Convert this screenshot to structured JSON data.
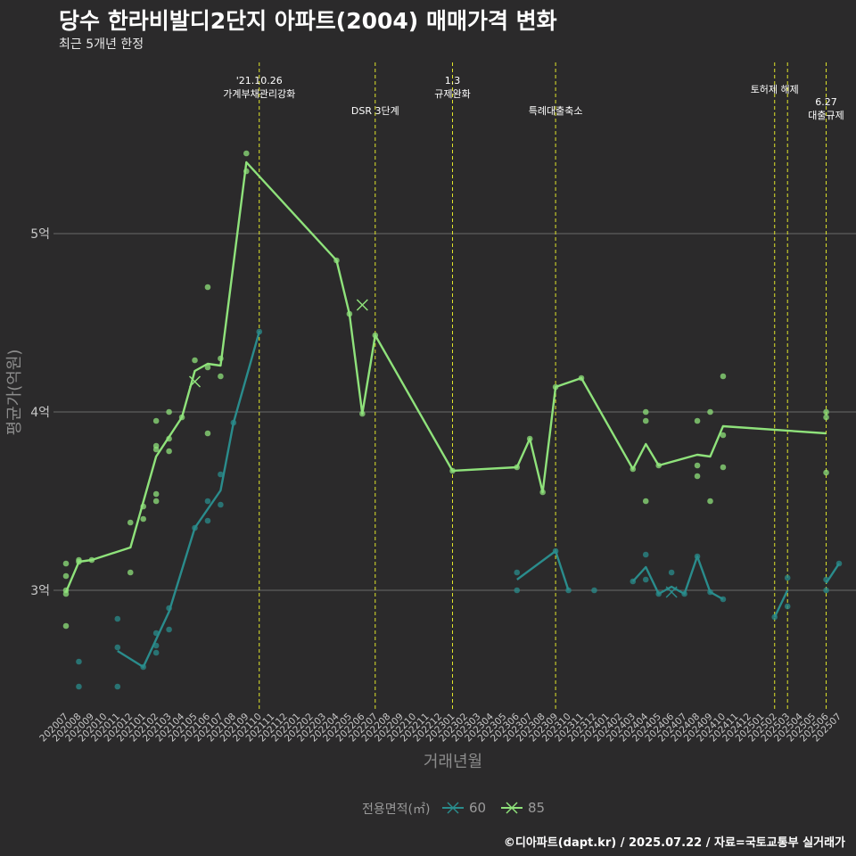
{
  "header": {
    "title": "당수 한라비발디2단지 아파트(2004) 매매가격 변화",
    "subtitle": "최근 5개년 한정",
    "caption": "©디아파트(dapt.kr) / 2025.07.22 / 자료=국토교통부 실거래가"
  },
  "colors": {
    "background": "#2b2a2b",
    "grid": "#6a6a6a",
    "series_60": "#2a8c8c",
    "series_85": "#8fe27b",
    "event_line": "#e1e62a",
    "axis_text": "#c8c8c8",
    "axis_title": "#8c8c8c"
  },
  "legend": {
    "title": "전용면적(㎡)",
    "items": [
      "60",
      "85"
    ]
  },
  "chart_data": {
    "type": "line",
    "title": "당수 한라비발디2단지 아파트(2004) 매매가격 변화",
    "subtitle": "최근 5개년 한정",
    "xlabel": "거래년월",
    "ylabel": "평균가(억원)",
    "ylim": [
      2.33,
      5.98
    ],
    "yticks": [
      3,
      4,
      5
    ],
    "ytick_labels": [
      "3억",
      "4억",
      "5억"
    ],
    "grid": true,
    "legend_position": "bottom",
    "categories": [
      "202007",
      "202008",
      "202009",
      "202010",
      "202011",
      "202012",
      "202101",
      "202102",
      "202103",
      "202104",
      "202105",
      "202106",
      "202107",
      "202108",
      "202109",
      "202110",
      "202111",
      "202112",
      "202201",
      "202202",
      "202203",
      "202204",
      "202205",
      "202206",
      "202207",
      "202208",
      "202209",
      "202210",
      "202211",
      "202212",
      "202301",
      "202302",
      "202303",
      "202304",
      "202305",
      "202306",
      "202307",
      "202308",
      "202309",
      "202310",
      "202311",
      "202312",
      "202401",
      "202402",
      "202403",
      "202404",
      "202405",
      "202406",
      "202407",
      "202408",
      "202409",
      "202410",
      "202411",
      "202412",
      "202501",
      "202502",
      "202503",
      "202504",
      "202505",
      "202506",
      "202507"
    ],
    "events": [
      {
        "x": "202110",
        "label": "'21.10.26\n가계부채관리강화",
        "level": 1
      },
      {
        "x": "202207",
        "label": "DSR 3단계",
        "level": 2
      },
      {
        "x": "202301",
        "label": "1.3\n규제완화",
        "level": 1
      },
      {
        "x": "202309",
        "label": "특례대출축소",
        "level": 2
      },
      {
        "x": "202502",
        "label": "토허제 해제",
        "level": 1
      },
      {
        "x": "202503",
        "label": "",
        "level": 1
      },
      {
        "x": "202506",
        "label": "6.27\n대출규제",
        "level": 3
      }
    ],
    "series": [
      {
        "name": "60",
        "line": [
          [
            "202011",
            2.66
          ],
          [
            "202101",
            2.57
          ],
          [
            "202103",
            2.88
          ],
          [
            "202105",
            3.35
          ],
          [
            "202107",
            3.56
          ],
          [
            "202108",
            3.94
          ],
          [
            "202110",
            4.45
          ],
          null,
          [
            "202306",
            3.06
          ],
          [
            "202309",
            3.22
          ],
          [
            "202310",
            3.0
          ],
          null,
          [
            "202403",
            3.05
          ],
          [
            "202404",
            3.13
          ],
          [
            "202405",
            2.98
          ],
          [
            "202406",
            3.02
          ],
          [
            "202407",
            2.98
          ],
          [
            "202408",
            3.19
          ],
          [
            "202409",
            2.99
          ],
          [
            "202410",
            2.95
          ],
          null,
          [
            "202502",
            2.85
          ],
          [
            "202503",
            3.0
          ],
          null,
          [
            "202506",
            3.04
          ],
          [
            "202507",
            3.15
          ]
        ],
        "points": [
          [
            "202008",
            2.46
          ],
          [
            "202008",
            2.6
          ],
          [
            "202011",
            2.46
          ],
          [
            "202011",
            2.68
          ],
          [
            "202011",
            2.84
          ],
          [
            "202101",
            2.57
          ],
          [
            "202102",
            2.65
          ],
          [
            "202102",
            2.69
          ],
          [
            "202102",
            2.76
          ],
          [
            "202103",
            2.78
          ],
          [
            "202103",
            2.9
          ],
          [
            "202105",
            3.35
          ],
          [
            "202106",
            3.39
          ],
          [
            "202106",
            3.5
          ],
          [
            "202107",
            3.48
          ],
          [
            "202107",
            3.65
          ],
          [
            "202108",
            3.94
          ],
          [
            "202110",
            4.45
          ],
          [
            "202306",
            3.0
          ],
          [
            "202306",
            3.1
          ],
          [
            "202309",
            3.22
          ],
          [
            "202310",
            3.0
          ],
          [
            "202312",
            3.0
          ],
          [
            "202403",
            3.05
          ],
          [
            "202404",
            3.06
          ],
          [
            "202404",
            3.2
          ],
          [
            "202405",
            2.98
          ],
          [
            "202406",
            3.1
          ],
          [
            "202407",
            2.98
          ],
          [
            "202408",
            3.19
          ],
          [
            "202409",
            2.99
          ],
          [
            "202410",
            2.95
          ],
          [
            "202502",
            2.85
          ],
          [
            "202503",
            2.91
          ],
          [
            "202503",
            3.07
          ],
          [
            "202506",
            3.0
          ],
          [
            "202506",
            3.06
          ],
          [
            "202507",
            3.15
          ]
        ],
        "cross": [
          [
            "202406",
            2.99
          ]
        ]
      },
      {
        "name": "85",
        "line": [
          [
            "202007",
            2.99
          ],
          [
            "202008",
            3.16
          ],
          [
            "202009",
            3.17
          ],
          [
            "202012",
            3.24
          ],
          [
            "202102",
            3.75
          ],
          [
            "202104",
            3.97
          ],
          [
            "202105",
            4.23
          ],
          [
            "202106",
            4.27
          ],
          [
            "202107",
            4.26
          ],
          [
            "202109",
            5.4
          ],
          [
            "202204",
            4.85
          ],
          [
            "202205",
            4.55
          ],
          [
            "202206",
            3.99
          ],
          [
            "202207",
            4.43
          ],
          [
            "202301",
            3.67
          ],
          [
            "202306",
            3.69
          ],
          [
            "202307",
            3.85
          ],
          [
            "202308",
            3.55
          ],
          [
            "202309",
            4.14
          ],
          [
            "202311",
            4.19
          ],
          [
            "202403",
            3.68
          ],
          [
            "202404",
            3.82
          ],
          [
            "202405",
            3.7
          ],
          [
            "202408",
            3.76
          ],
          [
            "202409",
            3.75
          ],
          [
            "202410",
            3.92
          ],
          [
            "202506",
            3.88
          ]
        ],
        "points": [
          [
            "202007",
            2.8
          ],
          [
            "202007",
            2.98
          ],
          [
            "202007",
            3.0
          ],
          [
            "202007",
            3.08
          ],
          [
            "202007",
            3.15
          ],
          [
            "202008",
            3.16
          ],
          [
            "202008",
            3.17
          ],
          [
            "202009",
            3.17
          ],
          [
            "202012",
            3.1
          ],
          [
            "202012",
            3.38
          ],
          [
            "202101",
            3.4
          ],
          [
            "202101",
            3.47
          ],
          [
            "202102",
            3.5
          ],
          [
            "202102",
            3.54
          ],
          [
            "202102",
            3.79
          ],
          [
            "202102",
            3.81
          ],
          [
            "202102",
            3.95
          ],
          [
            "202103",
            3.78
          ],
          [
            "202103",
            3.85
          ],
          [
            "202103",
            4.0
          ],
          [
            "202104",
            3.97
          ],
          [
            "202105",
            4.29
          ],
          [
            "202106",
            3.88
          ],
          [
            "202106",
            4.25
          ],
          [
            "202106",
            4.7
          ],
          [
            "202107",
            4.2
          ],
          [
            "202107",
            4.3
          ],
          [
            "202109",
            5.35
          ],
          [
            "202109",
            5.45
          ],
          [
            "202204",
            4.85
          ],
          [
            "202205",
            4.55
          ],
          [
            "202206",
            3.99
          ],
          [
            "202207",
            4.43
          ],
          [
            "202301",
            3.67
          ],
          [
            "202306",
            3.69
          ],
          [
            "202307",
            3.85
          ],
          [
            "202308",
            3.55
          ],
          [
            "202309",
            4.14
          ],
          [
            "202311",
            4.19
          ],
          [
            "202403",
            3.68
          ],
          [
            "202404",
            3.5
          ],
          [
            "202404",
            3.95
          ],
          [
            "202404",
            4.0
          ],
          [
            "202405",
            3.7
          ],
          [
            "202408",
            3.64
          ],
          [
            "202408",
            3.7
          ],
          [
            "202408",
            3.95
          ],
          [
            "202409",
            3.5
          ],
          [
            "202409",
            4.0
          ],
          [
            "202410",
            3.69
          ],
          [
            "202410",
            3.87
          ],
          [
            "202410",
            4.2
          ],
          [
            "202506",
            3.66
          ],
          [
            "202506",
            3.97
          ],
          [
            "202506",
            4.0
          ]
        ],
        "cross": [
          [
            "202105",
            4.17
          ],
          [
            "202206",
            4.6
          ]
        ]
      }
    ]
  }
}
